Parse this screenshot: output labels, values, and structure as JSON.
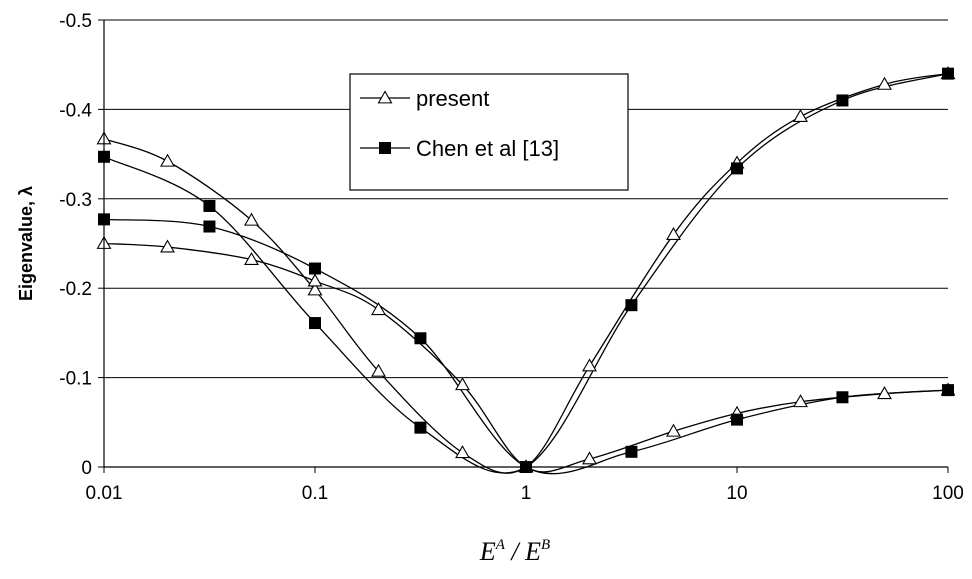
{
  "chart_data": {
    "type": "line",
    "title": "",
    "xlabel_main": "E",
    "xlabel_sup_a": "A",
    "xlabel_sep": " / ",
    "xlabel_main2": "E",
    "xlabel_sup_b": "B",
    "ylabel": "Eigenvalue, λ",
    "xscale": "log",
    "xlim": [
      0.01,
      100
    ],
    "ylim": [
      0,
      -0.5
    ],
    "y_inverted": true,
    "grid": "horizontal",
    "legend_position": "top-center",
    "x_ticks": [
      "0.01",
      "0.1",
      "1",
      "10",
      "100"
    ],
    "x_tick_values": [
      0.01,
      0.1,
      1,
      10,
      100
    ],
    "y_ticks": [
      "0",
      "-0.1",
      "-0.2",
      "-0.3",
      "-0.4",
      "-0.5"
    ],
    "y_tick_values": [
      0,
      -0.1,
      -0.2,
      -0.3,
      -0.4,
      -0.5
    ],
    "legend": [
      "present",
      "Chen et al [13]"
    ],
    "series": [
      {
        "name": "present",
        "marker": "triangle-open",
        "curves": [
          {
            "x": [
              0.01,
              0.02,
              0.05,
              0.1,
              0.2,
              0.5,
              1,
              2,
              5,
              10,
              20,
              50,
              100
            ],
            "y": [
              -0.367,
              -0.342,
              -0.276,
              -0.198,
              -0.107,
              -0.016,
              0,
              -0.113,
              -0.26,
              -0.34,
              -0.392,
              -0.428,
              -0.44
            ]
          },
          {
            "x": [
              0.01,
              0.02,
              0.05,
              0.1,
              0.2,
              0.5,
              1,
              2,
              5,
              10,
              20,
              50,
              100
            ],
            "y": [
              -0.25,
              -0.246,
              -0.232,
              -0.208,
              -0.176,
              -0.092,
              0,
              -0.009,
              -0.04,
              -0.06,
              -0.073,
              -0.082,
              -0.086
            ]
          }
        ]
      },
      {
        "name": "Chen et al [13]",
        "marker": "square-filled",
        "curves": [
          {
            "x": [
              0.01,
              0.0316,
              0.1,
              0.316,
              1,
              3.16,
              10,
              31.6,
              100
            ],
            "y": [
              -0.347,
              -0.292,
              -0.161,
              -0.044,
              0,
              -0.181,
              -0.334,
              -0.41,
              -0.44
            ]
          },
          {
            "x": [
              0.01,
              0.0316,
              0.1,
              0.316,
              1,
              3.16,
              10,
              31.6,
              100
            ],
            "y": [
              -0.277,
              -0.269,
              -0.222,
              -0.144,
              0,
              -0.017,
              -0.053,
              -0.078,
              -0.086
            ]
          }
        ]
      }
    ],
    "colors": {
      "line": "#000000",
      "grid": "#000000",
      "background": "#ffffff"
    }
  }
}
